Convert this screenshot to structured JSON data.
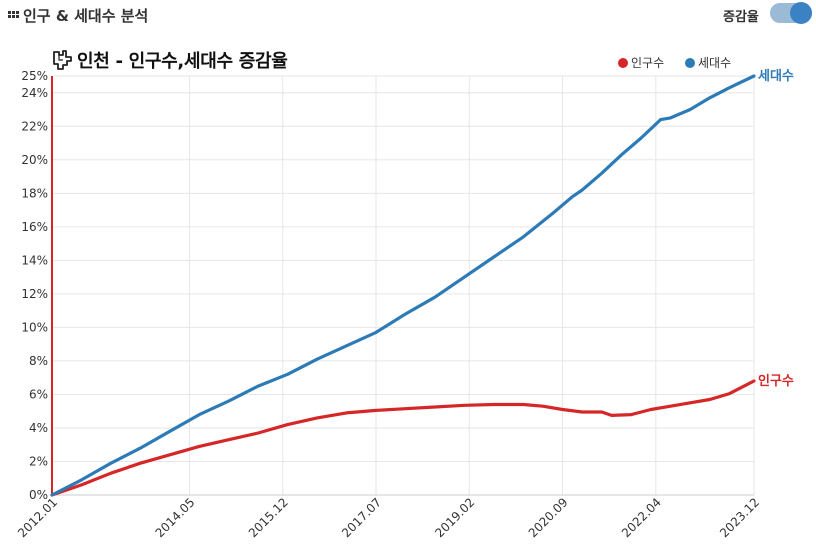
{
  "header": {
    "section_title": "인구 & 세대수 분석",
    "toggle_label": "증감율",
    "toggle_on": true
  },
  "colors": {
    "population": "#d62728",
    "households": "#2c7bb6",
    "toggle_track": "#9bbad6",
    "toggle_knob": "#3b82c4"
  },
  "chart_data": {
    "type": "line",
    "title": "인천 - 인구수,세대수 증감율",
    "xlabel": "",
    "ylabel": "",
    "ylim": [
      0,
      25
    ],
    "y_ticks": [
      0,
      2,
      4,
      6,
      8,
      10,
      12,
      14,
      16,
      18,
      20,
      22,
      24,
      25
    ],
    "y_tick_labels": [
      "0%",
      "2%",
      "4%",
      "6%",
      "8%",
      "10%",
      "12%",
      "14%",
      "16%",
      "18%",
      "20%",
      "22%",
      "24%",
      "25%"
    ],
    "x_range": [
      0,
      143
    ],
    "x_ticks": [
      {
        "index": 0,
        "label": "2012.01"
      },
      {
        "index": 28,
        "label": "2014.05"
      },
      {
        "index": 47,
        "label": "2015.12"
      },
      {
        "index": 66,
        "label": "2017.07"
      },
      {
        "index": 85,
        "label": "2019.02"
      },
      {
        "index": 104,
        "label": "2020.09"
      },
      {
        "index": 123,
        "label": "2022.04"
      },
      {
        "index": 143,
        "label": "2023.12"
      }
    ],
    "grid": true,
    "legend": "top-right",
    "legend_entries": [
      "인구수",
      "세대수"
    ],
    "series": [
      {
        "name": "인구수",
        "end_label": "인구수",
        "points": [
          [
            0,
            0
          ],
          [
            6,
            0.6
          ],
          [
            12,
            1.3
          ],
          [
            18,
            1.9
          ],
          [
            24,
            2.4
          ],
          [
            30,
            2.9
          ],
          [
            36,
            3.3
          ],
          [
            42,
            3.7
          ],
          [
            48,
            4.2
          ],
          [
            54,
            4.6
          ],
          [
            60,
            4.9
          ],
          [
            66,
            5.05
          ],
          [
            72,
            5.15
          ],
          [
            78,
            5.25
          ],
          [
            84,
            5.35
          ],
          [
            90,
            5.4
          ],
          [
            96,
            5.4
          ],
          [
            100,
            5.3
          ],
          [
            104,
            5.1
          ],
          [
            108,
            4.95
          ],
          [
            112,
            4.95
          ],
          [
            114,
            4.75
          ],
          [
            118,
            4.8
          ],
          [
            122,
            5.1
          ],
          [
            126,
            5.3
          ],
          [
            130,
            5.5
          ],
          [
            134,
            5.7
          ],
          [
            138,
            6.05
          ],
          [
            143,
            6.8
          ]
        ]
      },
      {
        "name": "세대수",
        "end_label": "세대수",
        "points": [
          [
            0,
            0
          ],
          [
            6,
            0.9
          ],
          [
            12,
            1.9
          ],
          [
            18,
            2.8
          ],
          [
            24,
            3.8
          ],
          [
            30,
            4.8
          ],
          [
            36,
            5.6
          ],
          [
            42,
            6.5
          ],
          [
            48,
            7.2
          ],
          [
            54,
            8.1
          ],
          [
            60,
            8.9
          ],
          [
            66,
            9.7
          ],
          [
            72,
            10.8
          ],
          [
            78,
            11.8
          ],
          [
            84,
            13.0
          ],
          [
            90,
            14.2
          ],
          [
            96,
            15.4
          ],
          [
            102,
            16.8
          ],
          [
            106,
            17.8
          ],
          [
            108,
            18.2
          ],
          [
            112,
            19.2
          ],
          [
            116,
            20.3
          ],
          [
            120,
            21.3
          ],
          [
            124,
            22.4
          ],
          [
            126,
            22.5
          ],
          [
            130,
            23.0
          ],
          [
            134,
            23.7
          ],
          [
            138,
            24.3
          ],
          [
            143,
            25.0
          ]
        ]
      }
    ]
  }
}
